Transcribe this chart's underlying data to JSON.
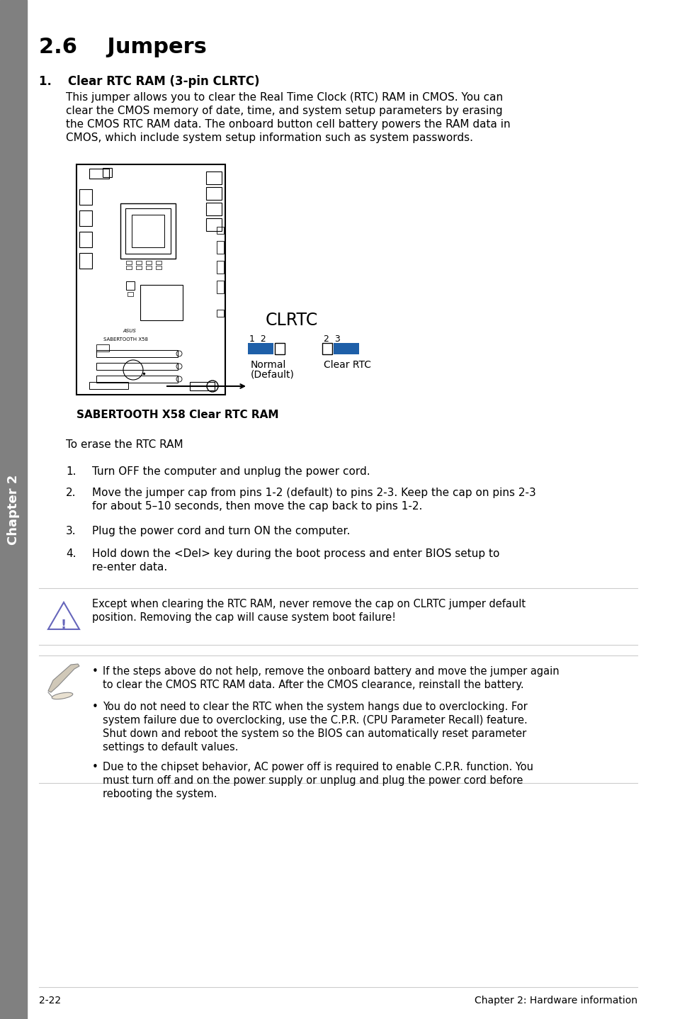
{
  "title": "2.6    Jumpers",
  "section1_bold": "1.    Clear RTC RAM (3-pin CLRTC)",
  "para1_lines": [
    "This jumper allows you to clear the Real Time Clock (RTC) RAM in CMOS. You can",
    "clear the CMOS memory of date, time, and system setup parameters by erasing",
    "the CMOS RTC RAM data. The onboard button cell battery powers the RAM data in",
    "CMOS, which include system setup information such as system passwords."
  ],
  "clrtc_label": "CLRTC",
  "board_caption": "SABERTOOTH X58 Clear RTC RAM",
  "erase_heading": "To erase the RTC RAM",
  "step1": "Turn OFF the computer and unplug the power cord.",
  "step2_lines": [
    "Move the jumper cap from pins 1-2 (default) to pins 2-3. Keep the cap on pins 2-3",
    "for about 5–10 seconds, then move the cap back to pins 1-2."
  ],
  "step3": "Plug the power cord and turn ON the computer.",
  "step4_lines": [
    "Hold down the <Del> key during the boot process and enter BIOS setup to",
    "re-enter data."
  ],
  "warning_lines": [
    "Except when clearing the RTC RAM, never remove the cap on CLRTC jumper default",
    "position. Removing the cap will cause system boot failure!"
  ],
  "note1_lines": [
    "If the steps above do not help, remove the onboard battery and move the jumper again",
    "to clear the CMOS RTC RAM data. After the CMOS clearance, reinstall the battery."
  ],
  "note2_lines": [
    "You do not need to clear the RTC when the system hangs due to overclocking. For",
    "system failure due to overclocking, use the C.P.R. (CPU Parameter Recall) feature.",
    "Shut down and reboot the system so the BIOS can automatically reset parameter",
    "settings to default values."
  ],
  "note3_lines": [
    "Due to the chipset behavior, AC power off is required to enable C.P.R. function. You",
    "must turn off and on the power supply or unplug and plug the power cord before",
    "rebooting the system."
  ],
  "footer_left": "2-22",
  "footer_right": "Chapter 2: Hardware information",
  "chapter_side": "Chapter 2",
  "bg_color": "#ffffff",
  "blue_color": "#1e5fa8",
  "side_tab_color": "#808080",
  "warn_tri_color": "#6666bb",
  "line_color": "#cccccc"
}
